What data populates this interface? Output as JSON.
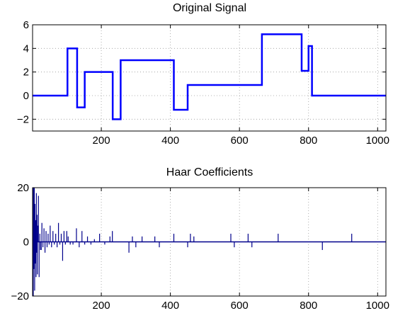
{
  "chart_data": [
    {
      "type": "line",
      "title": "Original Signal",
      "xlabel": "",
      "ylabel": "",
      "xlim": [
        1,
        1024
      ],
      "ylim": [
        -3,
        6
      ],
      "xticks": [
        200,
        400,
        600,
        800,
        1000
      ],
      "yticks": [
        -2,
        0,
        2,
        4,
        6
      ],
      "ytick_labels": [
        "−2",
        "0",
        "2",
        "4",
        "6"
      ],
      "grid": true,
      "color": "#0000ff",
      "x": [
        1,
        102,
        102,
        130,
        130,
        152,
        152,
        233,
        233,
        256,
        256,
        410,
        410,
        450,
        450,
        665,
        665,
        780,
        780,
        800,
        800,
        810,
        810,
        834,
        834,
        1024
      ],
      "y": [
        0,
        0,
        4,
        4,
        -1,
        -1,
        2,
        2,
        -2,
        -2,
        3,
        3,
        -1.2,
        -1.2,
        0.9,
        0.9,
        5.2,
        5.2,
        2.1,
        2.1,
        4.2,
        4.2,
        0,
        0,
        0,
        0
      ]
    },
    {
      "type": "stem",
      "title": "Haar Coefficients",
      "xlabel": "",
      "ylabel": "",
      "xlim": [
        1,
        1024
      ],
      "ylim": [
        -20,
        20
      ],
      "xticks": [
        200,
        400,
        600,
        800,
        1000
      ],
      "yticks": [
        -20,
        0,
        20
      ],
      "ytick_labels": [
        "−20",
        "0",
        "20"
      ],
      "grid": true,
      "color": "#00008b",
      "x": [
        2,
        3,
        4,
        5,
        6,
        7,
        8,
        9,
        10,
        11,
        12,
        13,
        14,
        15,
        16,
        18,
        20,
        22,
        24,
        26,
        28,
        31,
        34,
        37,
        40,
        43,
        46,
        49,
        52,
        56,
        60,
        64,
        68,
        72,
        76,
        80,
        84,
        88,
        92,
        96,
        100,
        104,
        110,
        118,
        128,
        136,
        144,
        152,
        160,
        170,
        180,
        195,
        210,
        225,
        232,
        280,
        290,
        300,
        318,
        355,
        368,
        410,
        450,
        458,
        468,
        575,
        585,
        625,
        636,
        712,
        840,
        925
      ],
      "y": [
        20,
        -20,
        20,
        -10,
        20,
        -18,
        14,
        -8,
        8,
        -13,
        18,
        -4,
        10,
        -12,
        6,
        17,
        -13,
        3,
        -3,
        -3,
        7,
        -2,
        5,
        -4,
        4,
        -2,
        3,
        -1,
        6,
        -2,
        4,
        -1,
        3,
        -2,
        7,
        -1,
        3,
        -7,
        4,
        -1,
        4,
        2,
        -1,
        -1,
        5,
        -2,
        4,
        -1,
        2,
        -1,
        1,
        3,
        -1,
        2,
        4,
        -4,
        2,
        -2,
        2,
        2,
        -2,
        3,
        -2,
        3,
        2,
        3,
        -2,
        3,
        -2,
        3,
        -3,
        3
      ]
    }
  ]
}
